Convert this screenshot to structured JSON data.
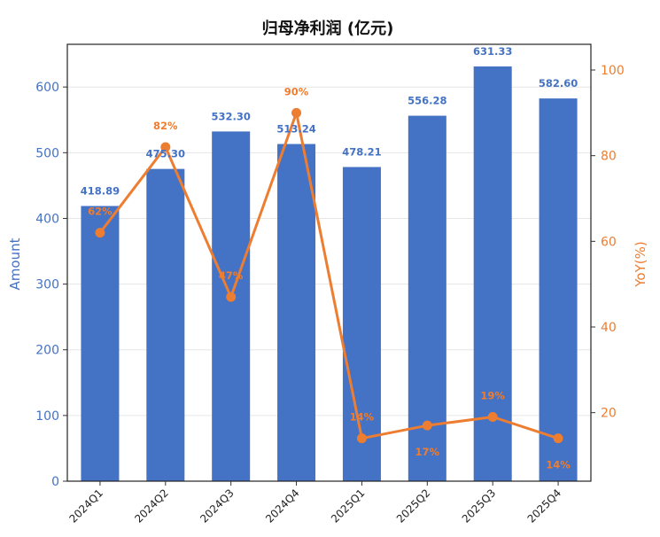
{
  "chart_data": {
    "type": "bar",
    "title": "归母净利润 (亿元)",
    "categories": [
      "2024Q1",
      "2024Q2",
      "2024Q3",
      "2024Q4",
      "2025Q1",
      "2025Q2",
      "2025Q3",
      "2025Q4"
    ],
    "series": [
      {
        "name": "Amount",
        "type": "bar",
        "axis": "left",
        "color": "#4472C4",
        "values": [
          418.89,
          475.3,
          532.3,
          513.24,
          478.21,
          556.28,
          631.33,
          582.6
        ],
        "labels": [
          "418.89",
          "475.30",
          "532.30",
          "513.24",
          "478.21",
          "556.28",
          "631.33",
          "582.60"
        ]
      },
      {
        "name": "YoY(%)",
        "type": "line",
        "axis": "right",
        "color": "#ED7D31",
        "values": [
          62,
          82,
          47,
          90,
          14,
          17,
          19,
          14
        ],
        "labels": [
          "62%",
          "82%",
          "47%",
          "90%",
          "14%",
          "17%",
          "19%",
          "14%"
        ]
      }
    ],
    "ylabel_left": "Amount",
    "ylabel_right": "YoY(%)",
    "ylim_left": [
      0,
      665
    ],
    "ylim_right": [
      4,
      106
    ],
    "yticks_left": [
      "0",
      "100",
      "200",
      "300",
      "400",
      "500",
      "600"
    ],
    "yticks_right": [
      "20",
      "40",
      "60",
      "80",
      "100"
    ],
    "grid": true,
    "legend": "none"
  }
}
